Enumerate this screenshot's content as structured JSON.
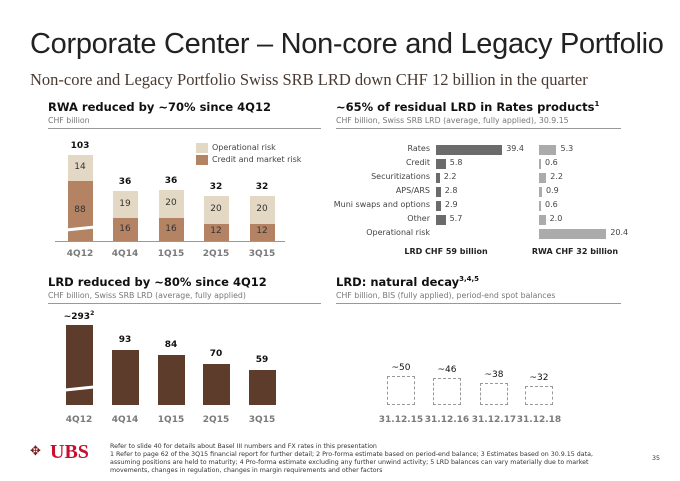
{
  "title": "Corporate Center – Non-core and Legacy Portfolio",
  "subtitle": "Non-core and Legacy Portfolio Swiss SRB LRD down CHF 12 billion in the quarter",
  "colors": {
    "operational": "#e3d8c4",
    "credit": "#b48364",
    "lrd_bar": "#5e3c2c",
    "rates_lrd": "#6b6b6b",
    "rates_rwa": "#ababab"
  },
  "chart_data": [
    {
      "type": "bar",
      "stacked": true,
      "title": "RWA reduced by ~70% since 4Q12",
      "subtitle": "CHF billion",
      "categories": [
        "4Q12",
        "4Q14",
        "1Q15",
        "2Q15",
        "3Q15"
      ],
      "totals": [
        "103",
        "36",
        "36",
        "32",
        "32"
      ],
      "series": [
        {
          "name": "Credit and market risk",
          "values": [
            88,
            16,
            16,
            12,
            12
          ]
        },
        {
          "name": "Operational risk",
          "values": [
            14,
            19,
            20,
            20,
            20
          ]
        }
      ],
      "legend": "top-right",
      "broken_axis_first_bar": true
    },
    {
      "type": "bar",
      "orientation": "horizontal",
      "title": "~65% of residual LRD in Rates products",
      "title_sup": "1",
      "subtitle": "CHF billion, Swiss SRB LRD (average, fully applied), 30.9.15",
      "categories": [
        "Rates",
        "Credit",
        "Securitizations",
        "APS/ARS",
        "Muni swaps and options",
        "Other",
        "Operational risk"
      ],
      "series": [
        {
          "name": "LRD CHF 59 billion",
          "values": [
            39.4,
            5.8,
            2.2,
            2.8,
            2.9,
            5.7,
            null
          ]
        },
        {
          "name": "RWA CHF 32 billion",
          "values": [
            5.3,
            0.6,
            2.2,
            0.9,
            0.6,
            2.0,
            20.4
          ]
        }
      ]
    },
    {
      "type": "bar",
      "title": "LRD reduced by ~80% since 4Q12",
      "subtitle": "CHF billion, Swiss SRB LRD (average, fully applied)",
      "categories": [
        "4Q12",
        "4Q14",
        "1Q15",
        "2Q15",
        "3Q15"
      ],
      "values": [
        293,
        93,
        84,
        70,
        59
      ],
      "labels": [
        "~293",
        "93",
        "84",
        "70",
        "59"
      ],
      "label_sup": [
        "2",
        "",
        "",
        "",
        ""
      ],
      "broken_axis_first_bar": true
    },
    {
      "type": "bar",
      "style": "dashed",
      "title": "LRD: natural decay",
      "title_sup": "3,4,5",
      "subtitle": "CHF billion, BIS (fully applied), period-end spot balances",
      "categories": [
        "31.12.15",
        "31.12.16",
        "31.12.17",
        "31.12.18"
      ],
      "values": [
        50,
        46,
        38,
        32
      ],
      "labels": [
        "~50",
        "~46",
        "~38",
        "~32"
      ]
    }
  ],
  "footer": {
    "logo": "UBS",
    "line1": "Refer to slide 40 for details about Basel III numbers and FX rates in this presentation",
    "line2": "1 Refer to page 62 of the 3Q15 financial report for further detail; 2 Pro-forma estimate based on period-end balance; 3 Estimates based on 30.9.15 data, assuming positions are held to maturity; 4 Pro-forma estimate excluding any further unwind activity; 5 LRD balances can vary materially due to market movements, changes in regulation, changes in margin requirements and other factors",
    "page": "35"
  }
}
